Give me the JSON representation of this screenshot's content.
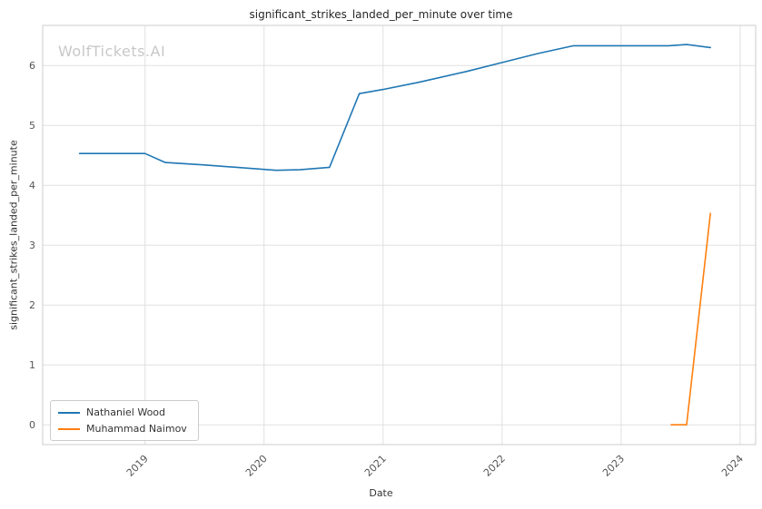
{
  "chart_data": {
    "type": "line",
    "title": "significant_strikes_landed_per_minute over time",
    "xlabel": "Date",
    "ylabel": "significant_strikes_landed_per_minute",
    "watermark": "WolfTickets.AI",
    "x_ticks": [
      2019,
      2020,
      2021,
      2022,
      2023,
      2024
    ],
    "y_ticks": [
      0,
      1,
      2,
      3,
      4,
      5,
      6
    ],
    "xlim": [
      2018.14,
      2024.13
    ],
    "ylim": [
      -0.33,
      6.67
    ],
    "grid": true,
    "legend_position": "lower left",
    "colors": {
      "grid": "#e0e0e0",
      "spine": "#cccccc",
      "tick_label": "#555555",
      "title": "#262626",
      "watermark": "#c8c8c8"
    },
    "series": [
      {
        "name": "Nathaniel Wood",
        "color": "#1f77b4",
        "points": [
          [
            2018.45,
            4.53
          ],
          [
            2019.0,
            4.53
          ],
          [
            2019.17,
            4.38
          ],
          [
            2019.5,
            4.34
          ],
          [
            2020.1,
            4.25
          ],
          [
            2020.3,
            4.26
          ],
          [
            2020.55,
            4.3
          ],
          [
            2020.8,
            5.53
          ],
          [
            2021.0,
            5.6
          ],
          [
            2021.3,
            5.72
          ],
          [
            2021.7,
            5.9
          ],
          [
            2022.0,
            6.05
          ],
          [
            2022.3,
            6.2
          ],
          [
            2022.6,
            6.33
          ],
          [
            2023.0,
            6.33
          ],
          [
            2023.4,
            6.33
          ],
          [
            2023.55,
            6.35
          ],
          [
            2023.75,
            6.3
          ]
        ]
      },
      {
        "name": "Muhammad Naimov",
        "color": "#ff7f0e",
        "points": [
          [
            2023.42,
            0.0
          ],
          [
            2023.55,
            0.0
          ],
          [
            2023.75,
            3.53
          ]
        ]
      }
    ]
  }
}
